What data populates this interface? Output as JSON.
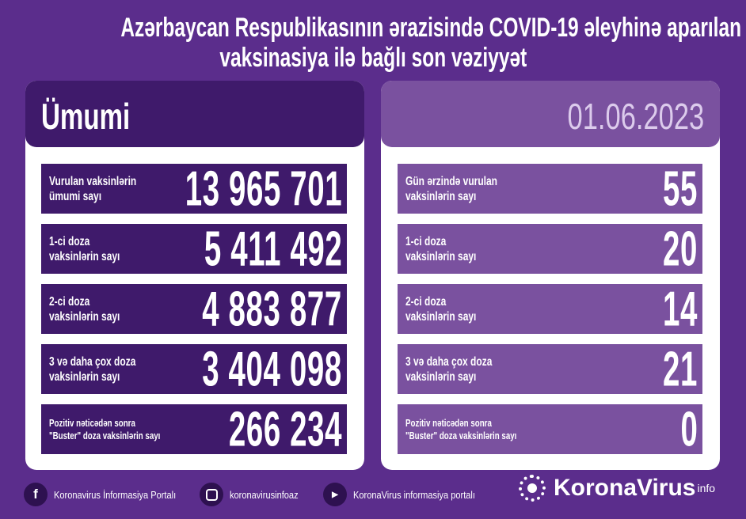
{
  "title": {
    "line1": "Azərbaycan Respublikasının ərazisində COVID-19 əleyhinə aparılan",
    "line2": "vaksinasiya ilə bağlı son vəziyyət"
  },
  "left": {
    "header": "Ümumi",
    "rows": [
      {
        "label1": "Vurulan vaksinlərin",
        "label2": "ümumi sayı",
        "value": "13 965 701"
      },
      {
        "label1": "1-ci doza",
        "label2": "vaksinlərin sayı",
        "value": "5 411 492"
      },
      {
        "label1": "2-ci doza",
        "label2": "vaksinlərin sayı",
        "value": "4 883 877"
      },
      {
        "label1": "3 və daha çox doza",
        "label2": "vaksinlərin sayı",
        "value": "3 404 098"
      },
      {
        "label1": "Pozitiv nəticədən sonra",
        "label2": "\"Buster\" doza vaksinlərin sayı",
        "value": "266 234"
      }
    ]
  },
  "right": {
    "header": "01.06.2023",
    "rows": [
      {
        "label1": "Gün ərzində vurulan",
        "label2": "vaksinlərin sayı",
        "value": "55"
      },
      {
        "label1": "1-ci doza",
        "label2": "vaksinlərin sayı",
        "value": "20"
      },
      {
        "label1": "2-ci doza",
        "label2": "vaksinlərin sayı",
        "value": "14"
      },
      {
        "label1": "3 və daha çox doza",
        "label2": "vaksinlərin sayı",
        "value": "21"
      },
      {
        "label1": "Pozitiv nəticədən sonra",
        "label2": "\"Buster\" doza vaksinlərin sayı",
        "value": "0"
      }
    ]
  },
  "footer": {
    "facebook": "Koronavirus İnformasiya Portalı",
    "instagram": "koronavirusinfoaz",
    "youtube": "KoronaVirus informasiya portalı"
  },
  "logo": {
    "name": "KoronaVirus",
    "sup": "info"
  },
  "colors": {
    "background": "#5b2d8c",
    "dark_row": "#3f1a6b",
    "light_row": "#7a519f"
  }
}
